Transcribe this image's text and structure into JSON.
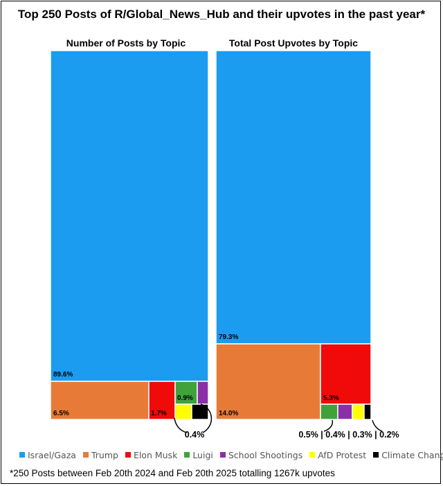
{
  "title": "Top 250 Posts of R/Global_News_Hub and their upvotes in the past year*",
  "footnote": "*250 Posts between Feb 20th 2024 and Feb 20th 2025 totalling 1267k upvotes",
  "legend": [
    {
      "name": "Israel/Gaza",
      "color": "#1b9cf0"
    },
    {
      "name": "Trump",
      "color": "#e87a38"
    },
    {
      "name": "Elon Musk",
      "color": "#f00a0a"
    },
    {
      "name": "Luigi",
      "color": "#3fa33a"
    },
    {
      "name": "School Shootings",
      "color": "#8b2fa8"
    },
    {
      "name": "AfD Protest",
      "color": "#ffff00"
    },
    {
      "name": "Climate Change",
      "color": "#000000"
    }
  ],
  "chart_data": [
    {
      "type": "treemap",
      "title": "Number of Posts by Topic",
      "categories": [
        "Israel/Gaza",
        "Trump",
        "Elon Musk",
        "Luigi",
        "School Shootings",
        "AfD Protest",
        "Climate Change"
      ],
      "values": [
        89.6,
        6.5,
        1.7,
        0.9,
        0.4,
        0.4,
        0.4
      ],
      "data_labels": [
        "89.6%",
        "6.5%",
        "1.7%",
        "0.9%",
        "",
        "",
        ""
      ],
      "callout": "0.4%"
    },
    {
      "type": "treemap",
      "title": "Total Post Upvotes by Topic",
      "categories": [
        "Israel/Gaza",
        "Trump",
        "Elon Musk",
        "Luigi",
        "School Shootings",
        "AfD Protest",
        "Climate Change"
      ],
      "values": [
        79.3,
        14.0,
        5.3,
        0.5,
        0.4,
        0.3,
        0.2
      ],
      "data_labels": [
        "79.3%",
        "14.0%",
        "5.3%",
        "",
        "",
        "",
        ""
      ],
      "callout": "0.5% | 0.4% | 0.3% | 0.2%"
    }
  ]
}
